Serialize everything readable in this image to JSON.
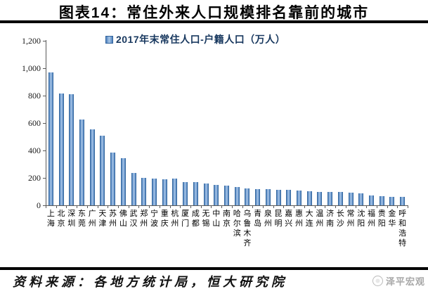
{
  "chart_data": {
    "type": "bar",
    "title": "图表14：常住外来人口规模排名靠前的城市",
    "legend": "2017年末常住人口-户籍人口（万人）",
    "legend_position": "top",
    "grid": false,
    "categories": [
      "上海",
      "北京",
      "深圳",
      "东莞",
      "广州",
      "天津",
      "苏州",
      "佛山",
      "武汉",
      "郑州",
      "宁波",
      "重庆",
      "杭州",
      "厦门",
      "成都",
      "无锡",
      "中山",
      "南京",
      "哈尔滨",
      "乌鲁木齐",
      "青岛",
      "泉州",
      "昆明",
      "嘉兴",
      "惠州",
      "大连",
      "温州",
      "济南",
      "长沙",
      "常州",
      "沈阳",
      "福州",
      "贵阳",
      "金华",
      "呼和浩特"
    ],
    "values": [
      970,
      815,
      810,
      627,
      556,
      509,
      386,
      344,
      237,
      202,
      197,
      191,
      193,
      170,
      172,
      157,
      151,
      146,
      136,
      122,
      120,
      118,
      114,
      112,
      107,
      101,
      97,
      96,
      95,
      93,
      86,
      70,
      65,
      64,
      63
    ],
    "ylim": [
      0,
      1200
    ],
    "yticks": [
      0,
      200,
      400,
      600,
      800,
      1000,
      1200
    ],
    "ytick_labels": [
      "0",
      "200",
      "400",
      "600",
      "800",
      "1,000",
      "1,200"
    ],
    "colors": {
      "bar_fill": "#4f81bd",
      "bar_highlight": "#a9c7e8",
      "bar_edge": "#35689f",
      "legend_text": "#17375e",
      "axis": "#595959"
    }
  },
  "footer": {
    "source": "资料来源：各地方统计局，恒大研究院",
    "watermark": "泽平宏观"
  }
}
